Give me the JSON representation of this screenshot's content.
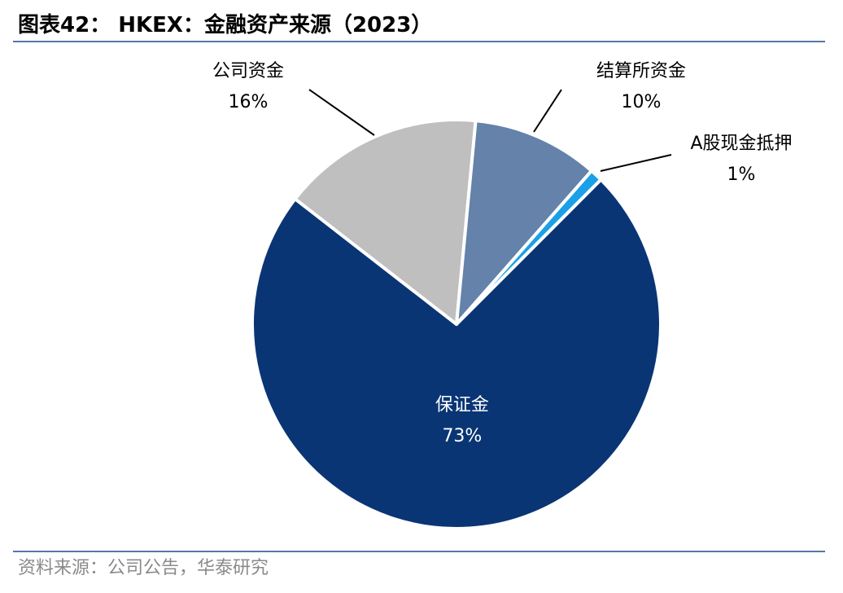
{
  "header": {
    "title": "图表42： HKEX：金融资产来源（2023）"
  },
  "footer": {
    "source": "资料来源：公司公告，华泰研究"
  },
  "colors": {
    "rule": "#5577aa",
    "slices": [
      "#0a3575",
      "#bfbfbf",
      "#6482aa",
      "#1aa0e6"
    ],
    "inside_label": "#ffffff",
    "outside_label": "#000000",
    "leader": "#000000"
  },
  "chart_data": {
    "type": "pie",
    "title": "",
    "start_angle_deg": 45,
    "direction": "clockwise",
    "legend": "none",
    "slices": [
      {
        "label": "保证金",
        "value": 73,
        "value_label": "73%",
        "label_position": "inside"
      },
      {
        "label": "公司资金",
        "value": 16,
        "value_label": "16%",
        "label_position": "outside-top-left"
      },
      {
        "label": "结算所资金",
        "value": 10,
        "value_label": "10%",
        "label_position": "outside-top-right"
      },
      {
        "label": "A股现金抵押",
        "value": 1,
        "value_label": "1%",
        "label_position": "outside-right"
      }
    ]
  }
}
